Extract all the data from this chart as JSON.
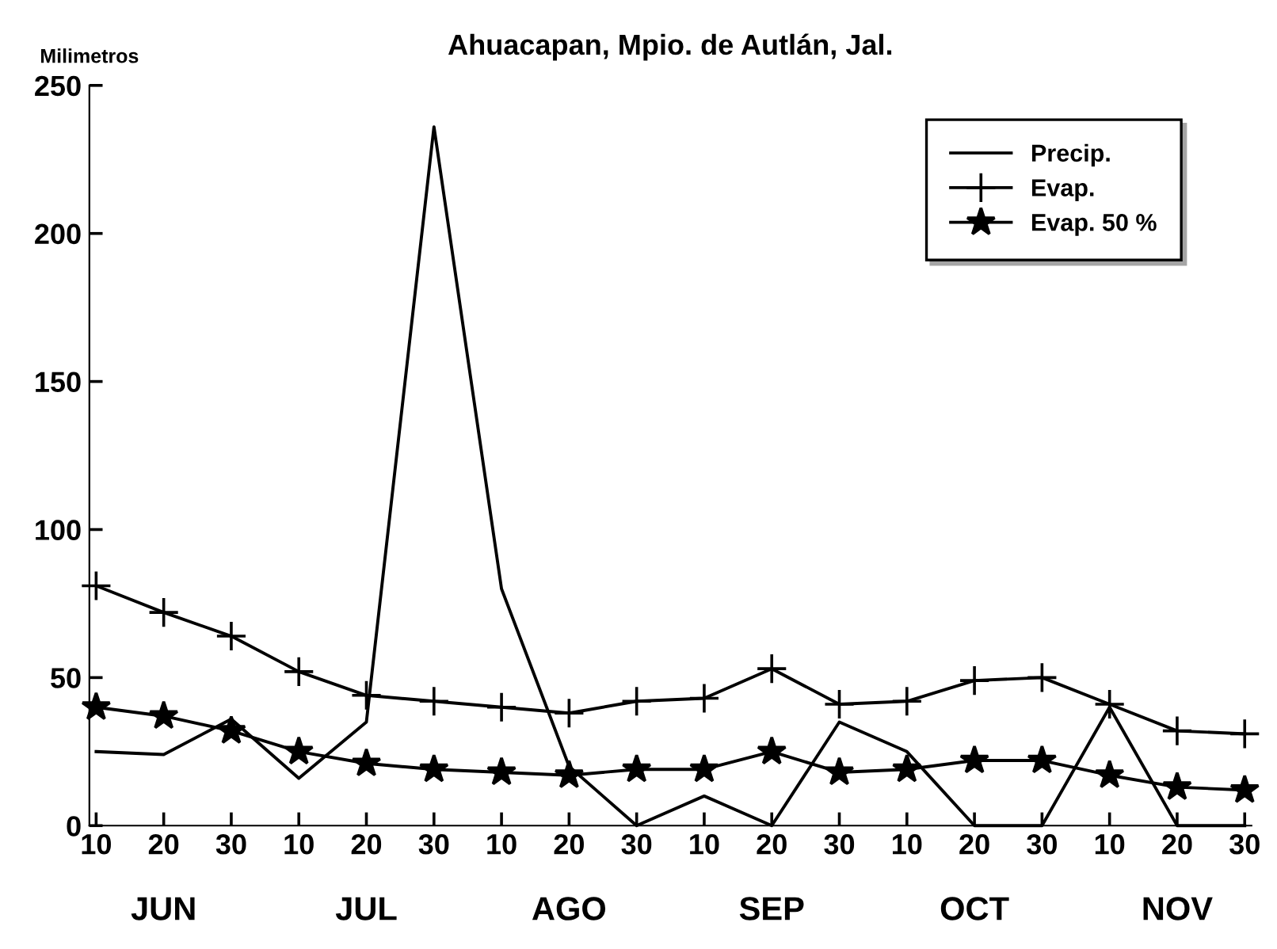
{
  "chart_data": {
    "type": "line",
    "title": "Ahuacapan, Mpio. de Autlán, Jal.",
    "ylabel": "Milimetros",
    "categories": [
      "10",
      "20",
      "30",
      "10",
      "20",
      "30",
      "10",
      "20",
      "30",
      "10",
      "20",
      "30",
      "10",
      "20",
      "30",
      "10",
      "20",
      "30"
    ],
    "annotations": [
      "JUN",
      "JUL",
      "AGO",
      "SEP",
      "OCT",
      "NOV"
    ],
    "series": [
      {
        "name": "Precip.",
        "color": "#000000",
        "marker": "none",
        "values": [
          25,
          24,
          36,
          16,
          35,
          236,
          80,
          20,
          0,
          10,
          0,
          35,
          25,
          0,
          0,
          40,
          0,
          0
        ]
      },
      {
        "name": "Evap.",
        "color": "#000000",
        "marker": "cross",
        "values": [
          81,
          72,
          64,
          52,
          44,
          42,
          40,
          38,
          42,
          43,
          53,
          41,
          42,
          49,
          50,
          41,
          32,
          31
        ]
      },
      {
        "name": "Evap. 50 %",
        "color": "#000000",
        "marker": "star",
        "values": [
          40,
          37,
          32,
          25,
          21,
          19,
          18,
          17,
          19,
          19,
          25,
          18,
          19,
          22,
          22,
          17,
          13,
          12
        ]
      }
    ],
    "ylim": [
      0,
      250
    ],
    "yticks": [
      0,
      50,
      100,
      150,
      200,
      250
    ],
    "grid": false,
    "legend": "top right",
    "line_style": "solid"
  }
}
